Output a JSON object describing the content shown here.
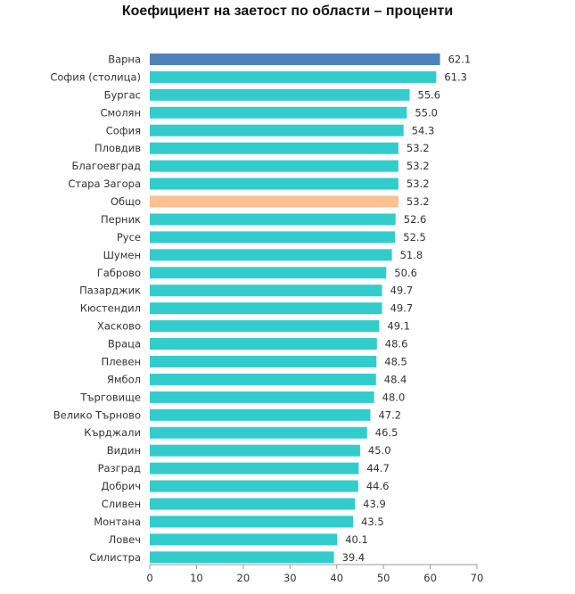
{
  "chart_data": {
    "type": "bar",
    "orientation": "horizontal",
    "title": "Коефициент на заетост по области – проценти",
    "categories": [
      "Варна",
      "София (столица)",
      "Бургас",
      "Смолян",
      "София",
      "Пловдив",
      "Благоевград",
      "Стара Загора",
      "Общо",
      "Перник",
      "Русе",
      "Шумен",
      "Габрово",
      "Пазарджик",
      "Кюстендил",
      "Хасково",
      "Враца",
      "Плевен",
      "Ямбол",
      "Търговище",
      "Велико Търново",
      "Кърджали",
      "Видин",
      "Разград",
      "Добрич",
      "Сливен",
      "Монтана",
      "Ловеч",
      "Силистра"
    ],
    "values": [
      62.1,
      61.3,
      55.6,
      55.0,
      54.3,
      53.2,
      53.2,
      53.2,
      53.2,
      52.6,
      52.5,
      51.8,
      50.6,
      49.7,
      49.7,
      49.1,
      48.6,
      48.5,
      48.4,
      48.0,
      47.2,
      46.5,
      45.0,
      44.7,
      44.6,
      43.9,
      43.5,
      40.1,
      39.4
    ],
    "value_labels": [
      "62.1",
      "61.3",
      "55.6",
      "55.0",
      "54.3",
      "53.2",
      "53.2",
      "53.2",
      "53.2",
      "52.6",
      "52.5",
      "51.8",
      "50.6",
      "49.7",
      "49.7",
      "49.1",
      "48.6",
      "48.5",
      "48.4",
      "48.0",
      "47.2",
      "46.5",
      "45.0",
      "44.7",
      "44.6",
      "43.9",
      "43.5",
      "40.1",
      "39.4"
    ],
    "xlim": [
      0,
      70
    ],
    "xticks": [
      "0",
      "10",
      "20",
      "30",
      "40",
      "50",
      "60",
      "70"
    ],
    "grid": false,
    "colors": {
      "default": "#33CCCC",
      "highlight_top": "#4F81BD",
      "highlight_total": "#FAC090",
      "axis": "#999999",
      "label_text": "#333333"
    },
    "bar_colors": [
      "highlight_top",
      "default",
      "default",
      "default",
      "default",
      "default",
      "default",
      "default",
      "highlight_total",
      "default",
      "default",
      "default",
      "default",
      "default",
      "default",
      "default",
      "default",
      "default",
      "default",
      "default",
      "default",
      "default",
      "default",
      "default",
      "default",
      "default",
      "default",
      "default",
      "default"
    ]
  }
}
